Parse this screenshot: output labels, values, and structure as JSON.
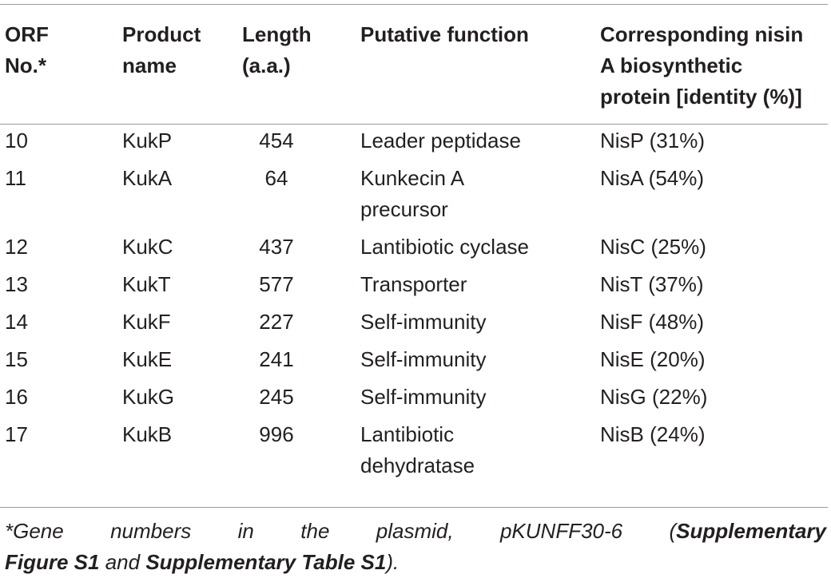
{
  "table": {
    "headers": [
      [
        "ORF",
        "No.*"
      ],
      [
        "Product",
        "name"
      ],
      [
        "Length",
        "(a.a.)"
      ],
      [
        "Putative function"
      ],
      [
        "Corresponding nisin",
        "A biosynthetic",
        "protein [identity (%)]"
      ]
    ],
    "rows": [
      {
        "orf": "10",
        "product": "KukP",
        "length": "454",
        "function": "Leader peptidase",
        "nisin": "NisP (31%)"
      },
      {
        "orf": "11",
        "product": "KukA",
        "length": "64",
        "function": "Kunkecin A\nprecursor",
        "nisin": "NisA (54%)"
      },
      {
        "orf": "12",
        "product": "KukC",
        "length": "437",
        "function": "Lantibiotic cyclase",
        "nisin": "NisC (25%)"
      },
      {
        "orf": "13",
        "product": "KukT",
        "length": "577",
        "function": "Transporter",
        "nisin": "NisT (37%)"
      },
      {
        "orf": "14",
        "product": "KukF",
        "length": "227",
        "function": "Self-immunity",
        "nisin": "NisF (48%)"
      },
      {
        "orf": "15",
        "product": "KukE",
        "length": "241",
        "function": "Self-immunity",
        "nisin": "NisE (20%)"
      },
      {
        "orf": "16",
        "product": "KukG",
        "length": "245",
        "function": "Self-immunity",
        "nisin": "NisG (22%)"
      },
      {
        "orf": "17",
        "product": "KukB",
        "length": "996",
        "function": "Lantibiotic\ndehydratase",
        "nisin": "NisB (24%)"
      }
    ]
  },
  "footnote": {
    "prefix": "*Gene numbers in the plasmid, pKUNFF30-6 (",
    "ref1": "Supplementary Figure S1",
    "middle": " and ",
    "ref2": "Supplementary Table S1",
    "suffix": ")."
  }
}
